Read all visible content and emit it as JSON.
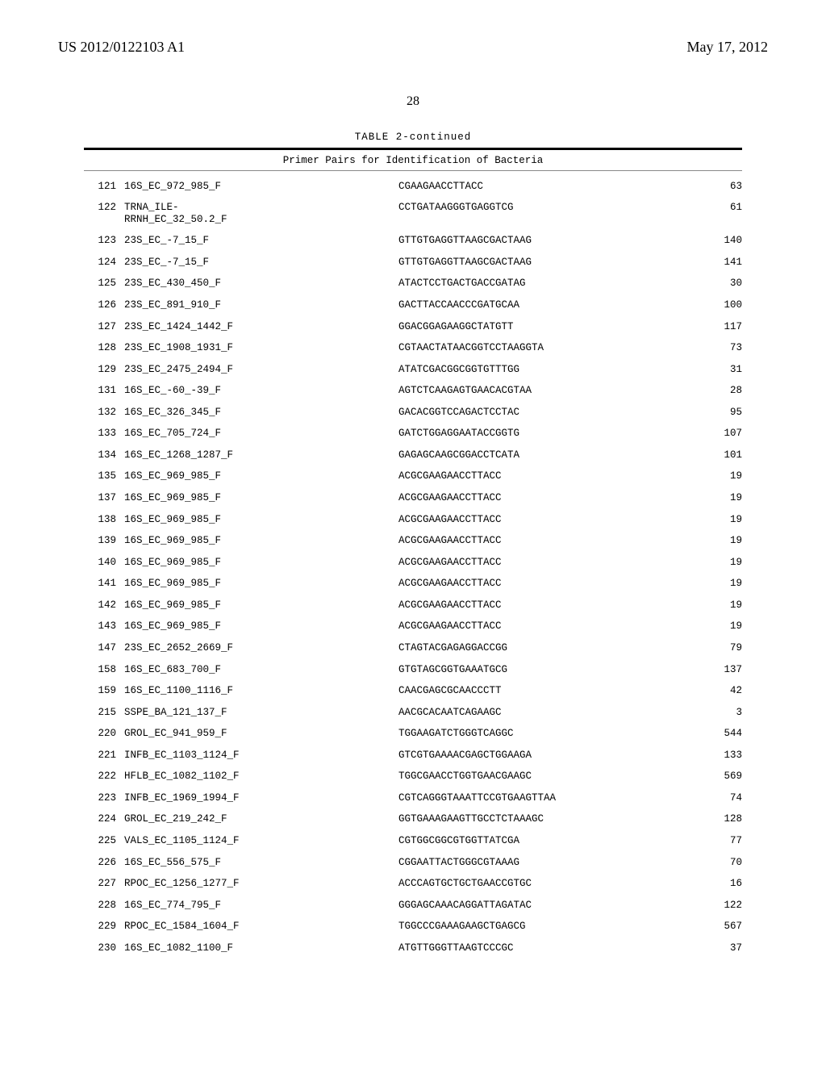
{
  "header": {
    "publication_number": "US 2012/0122103 A1",
    "publication_date": "May 17, 2012"
  },
  "page_number": "28",
  "table": {
    "type": "table",
    "title": "TABLE 2-continued",
    "subtitle": "Primer Pairs for Identification of Bacteria",
    "font_family_table": "Courier New",
    "font_family_header": "Times New Roman",
    "text_color": "#000000",
    "background_color": "#ffffff",
    "rule_color_top": "#000000",
    "rule_color_mid": "#888888",
    "font_size_body": 12.5,
    "font_size_header": 18,
    "font_size_page_num": 16,
    "columns": [
      "pair_no",
      "primer_name",
      "sequence",
      "value"
    ],
    "rows": [
      {
        "n": "121",
        "name": "16S_EC_972_985_F",
        "seq": "CGAAGAACCTTACC",
        "v": "63"
      },
      {
        "n": "122",
        "name": "TRNA_ILE-\nRRNH_EC_32_50.2_F",
        "seq": "CCTGATAAGGGTGAGGTCG",
        "v": "61"
      },
      {
        "n": "123",
        "name": "23S_EC_-7_15_F",
        "seq": "GTTGTGAGGTTAAGCGACTAAG",
        "v": "140"
      },
      {
        "n": "124",
        "name": "23S_EC_-7_15_F",
        "seq": "GTTGTGAGGTTAAGCGACTAAG",
        "v": "141"
      },
      {
        "n": "125",
        "name": "23S_EC_430_450_F",
        "seq": "ATACTCCTGACTGACCGATAG",
        "v": "30"
      },
      {
        "n": "126",
        "name": "23S_EC_891_910_F",
        "seq": "GACTTACCAACCCGATGCAA",
        "v": "100"
      },
      {
        "n": "127",
        "name": "23S_EC_1424_1442_F",
        "seq": "GGACGGAGAAGGCTATGTT",
        "v": "117"
      },
      {
        "n": "128",
        "name": "23S_EC_1908_1931_F",
        "seq": "CGTAACTATAACGGTCCTAAGGTA",
        "v": "73"
      },
      {
        "n": "129",
        "name": "23S_EC_2475_2494_F",
        "seq": "ATATCGACGGCGGTGTTTGG",
        "v": "31"
      },
      {
        "n": "131",
        "name": "16S_EC_-60_-39_F",
        "seq": "AGTCTCAAGAGTGAACACGTAA",
        "v": "28"
      },
      {
        "n": "132",
        "name": "16S_EC_326_345_F",
        "seq": "GACACGGTCCAGACTCCTAC",
        "v": "95"
      },
      {
        "n": "133",
        "name": "16S_EC_705_724_F",
        "seq": "GATCTGGAGGAATACCGGTG",
        "v": "107"
      },
      {
        "n": "134",
        "name": "16S_EC_1268_1287_F",
        "seq": "GAGAGCAAGCGGACCTCATA",
        "v": "101"
      },
      {
        "n": "135",
        "name": "16S_EC_969_985_F",
        "seq": "ACGCGAAGAACCTTACC",
        "v": "19"
      },
      {
        "n": "137",
        "name": "16S_EC_969_985_F",
        "seq": "ACGCGAAGAACCTTACC",
        "v": "19"
      },
      {
        "n": "138",
        "name": "16S_EC_969_985_F",
        "seq": "ACGCGAAGAACCTTACC",
        "v": "19"
      },
      {
        "n": "139",
        "name": "16S_EC_969_985_F",
        "seq": "ACGCGAAGAACCTTACC",
        "v": "19"
      },
      {
        "n": "140",
        "name": "16S_EC_969_985_F",
        "seq": "ACGCGAAGAACCTTACC",
        "v": "19"
      },
      {
        "n": "141",
        "name": "16S_EC_969_985_F",
        "seq": "ACGCGAAGAACCTTACC",
        "v": "19"
      },
      {
        "n": "142",
        "name": "16S_EC_969_985_F",
        "seq": "ACGCGAAGAACCTTACC",
        "v": "19"
      },
      {
        "n": "143",
        "name": "16S_EC_969_985_F",
        "seq": "ACGCGAAGAACCTTACC",
        "v": "19"
      },
      {
        "n": "147",
        "name": "23S_EC_2652_2669_F",
        "seq": "CTAGTACGAGAGGACCGG",
        "v": "79"
      },
      {
        "n": "158",
        "name": "16S_EC_683_700_F",
        "seq": "GTGTAGCGGTGAAATGCG",
        "v": "137"
      },
      {
        "n": "159",
        "name": "16S_EC_1100_1116_F",
        "seq": "CAACGAGCGCAACCCTT",
        "v": "42"
      },
      {
        "n": "215",
        "name": "SSPE_BA_121_137_F",
        "seq": "AACGCACAATCAGAAGC",
        "v": "3"
      },
      {
        "n": "220",
        "name": "GROL_EC_941_959_F",
        "seq": "TGGAAGATCTGGGTCAGGC",
        "v": "544"
      },
      {
        "n": "221",
        "name": "INFB_EC_1103_1124_F",
        "seq": "GTCGTGAAAACGAGCTGGAAGA",
        "v": "133"
      },
      {
        "n": "222",
        "name": "HFLB_EC_1082_1102_F",
        "seq": "TGGCGAACCTGGTGAACGAAGC",
        "v": "569"
      },
      {
        "n": "223",
        "name": "INFB_EC_1969_1994_F",
        "seq": "CGTCAGGGTAAATTCCGTGAAGTTAA",
        "v": "74"
      },
      {
        "n": "224",
        "name": "GROL_EC_219_242_F",
        "seq": "GGTGAAAGAAGTTGCCTCTAAAGC",
        "v": "128"
      },
      {
        "n": "225",
        "name": "VALS_EC_1105_1124_F",
        "seq": "CGTGGCGGCGTGGTTATCGA",
        "v": "77"
      },
      {
        "n": "226",
        "name": "16S_EC_556_575_F",
        "seq": "CGGAATTACTGGGCGTAAAG",
        "v": "70"
      },
      {
        "n": "227",
        "name": "RPOC_EC_1256_1277_F",
        "seq": "ACCCAGTGCTGCTGAACCGTGC",
        "v": "16"
      },
      {
        "n": "228",
        "name": "16S_EC_774_795_F",
        "seq": "GGGAGCAAACAGGATTAGATAC",
        "v": "122"
      },
      {
        "n": "229",
        "name": "RPOC_EC_1584_1604_F",
        "seq": "TGGCCCGAAAGAAGCTGAGCG",
        "v": "567"
      },
      {
        "n": "230",
        "name": "16S_EC_1082_1100_F",
        "seq": "ATGTTGGGTTAAGTCCCGC",
        "v": "37"
      }
    ]
  }
}
